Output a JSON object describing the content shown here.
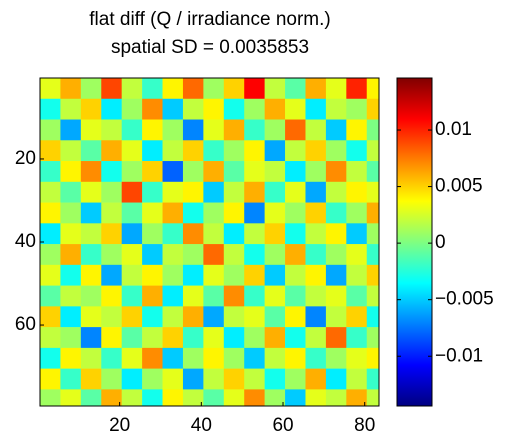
{
  "chart_data": {
    "type": "heatmap",
    "title": "flat diff (Q / irradiance norm.)",
    "subtitle": "spatial SD = 0.0035853",
    "colormap": "jet",
    "x": [
      3,
      8,
      13,
      18,
      23,
      28,
      33,
      38,
      43,
      48,
      53,
      58,
      63,
      68,
      73,
      78,
      83
    ],
    "y": [
      3,
      8,
      13,
      18,
      23,
      28,
      33,
      38,
      43,
      48,
      53,
      58,
      63,
      68,
      73,
      78
    ],
    "z": [
      [
        0.003,
        0.006,
        0.001,
        0.009,
        0.002,
        -0.002,
        0.004,
        0.008,
        0.001,
        0.005,
        0.011,
        0.002,
        -0.001,
        0.006,
        0.003,
        0.01,
        0.004
      ],
      [
        -0.003,
        0.002,
        0.005,
        -0.004,
        0.001,
        0.007,
        -0.005,
        0.002,
        0.004,
        -0.003,
        0.001,
        0.006,
        0.003,
        -0.004,
        0.002,
        0.001,
        0.005
      ],
      [
        0.001,
        -0.006,
        0.003,
        0.002,
        -0.002,
        0.004,
        0.001,
        -0.007,
        0.003,
        0.006,
        -0.002,
        0.001,
        0.008,
        0.002,
        -0.005,
        0.004,
        0.0
      ],
      [
        0.005,
        0.002,
        -0.001,
        0.006,
        0.003,
        -0.004,
        0.002,
        0.005,
        -0.002,
        0.001,
        0.004,
        -0.006,
        0.002,
        0.005,
        0.001,
        -0.003,
        0.002
      ],
      [
        -0.002,
        0.004,
        0.007,
        -0.003,
        0.001,
        0.005,
        -0.008,
        0.001,
        0.006,
        -0.001,
        0.003,
        0.002,
        -0.004,
        0.001,
        0.007,
        0.002,
        -0.001
      ],
      [
        0.002,
        -0.001,
        0.003,
        0.001,
        0.009,
        -0.002,
        0.003,
        0.004,
        -0.005,
        0.002,
        0.006,
        -0.002,
        0.003,
        -0.006,
        0.002,
        0.004,
        0.003
      ],
      [
        0.004,
        0.001,
        -0.005,
        0.002,
        -0.001,
        0.003,
        0.006,
        -0.003,
        0.001,
        0.004,
        -0.007,
        0.003,
        0.001,
        0.005,
        -0.002,
        0.001,
        0.006
      ],
      [
        -0.004,
        0.003,
        0.002,
        0.005,
        -0.006,
        0.001,
        -0.002,
        0.007,
        0.002,
        -0.004,
        0.002,
        0.005,
        -0.003,
        0.002,
        0.004,
        -0.005,
        0.001
      ],
      [
        0.001,
        0.006,
        -0.002,
        0.001,
        0.003,
        -0.005,
        0.002,
        0.001,
        0.008,
        0.002,
        -0.003,
        0.001,
        0.006,
        -0.002,
        0.001,
        0.003,
        -0.002
      ],
      [
        0.003,
        -0.003,
        0.004,
        -0.006,
        0.002,
        0.004,
        0.001,
        -0.004,
        0.003,
        0.001,
        0.005,
        -0.005,
        0.002,
        0.004,
        -0.006,
        0.002,
        0.005
      ],
      [
        -0.001,
        0.002,
        0.001,
        0.004,
        -0.002,
        0.006,
        -0.004,
        0.003,
        -0.001,
        0.007,
        -0.002,
        0.003,
        -0.001,
        0.002,
        0.003,
        -0.001,
        0.002
      ],
      [
        0.005,
        -0.004,
        0.003,
        0.002,
        0.005,
        -0.003,
        0.002,
        0.006,
        -0.006,
        0.002,
        0.003,
        -0.001,
        0.004,
        -0.007,
        0.002,
        0.005,
        -0.003
      ],
      [
        0.002,
        0.001,
        -0.007,
        0.004,
        -0.001,
        0.002,
        0.005,
        -0.002,
        0.003,
        -0.004,
        0.001,
        0.006,
        -0.003,
        0.002,
        0.008,
        -0.002,
        0.001
      ],
      [
        -0.003,
        0.004,
        0.002,
        -0.002,
        0.003,
        0.007,
        -0.005,
        0.001,
        0.004,
        0.001,
        -0.005,
        0.002,
        0.004,
        -0.002,
        0.001,
        0.003,
        0.004
      ],
      [
        0.004,
        -0.002,
        0.005,
        0.001,
        -0.004,
        0.001,
        0.003,
        -0.006,
        0.002,
        0.005,
        0.002,
        -0.003,
        0.001,
        0.006,
        -0.004,
        0.002,
        -0.002
      ],
      [
        0.001,
        0.003,
        -0.001,
        0.006,
        0.002,
        -0.003,
        0.004,
        0.002,
        -0.001,
        0.003,
        0.007,
        0.001,
        -0.005,
        0.003,
        0.002,
        0.006,
        0.002
      ]
    ],
    "xlim": [
      0.5,
      83.5
    ],
    "ylim": [
      0.5,
      79.5
    ],
    "y_reversed": true,
    "xticks": [
      20,
      40,
      60,
      80
    ],
    "yticks": [
      20,
      40,
      60
    ],
    "clim": [
      -0.0144,
      0.0146
    ],
    "cticks": [
      {
        "value": -0.01,
        "label": "−0.01"
      },
      {
        "value": -0.005,
        "label": "−0.005"
      },
      0,
      0.005,
      0.01
    ]
  }
}
